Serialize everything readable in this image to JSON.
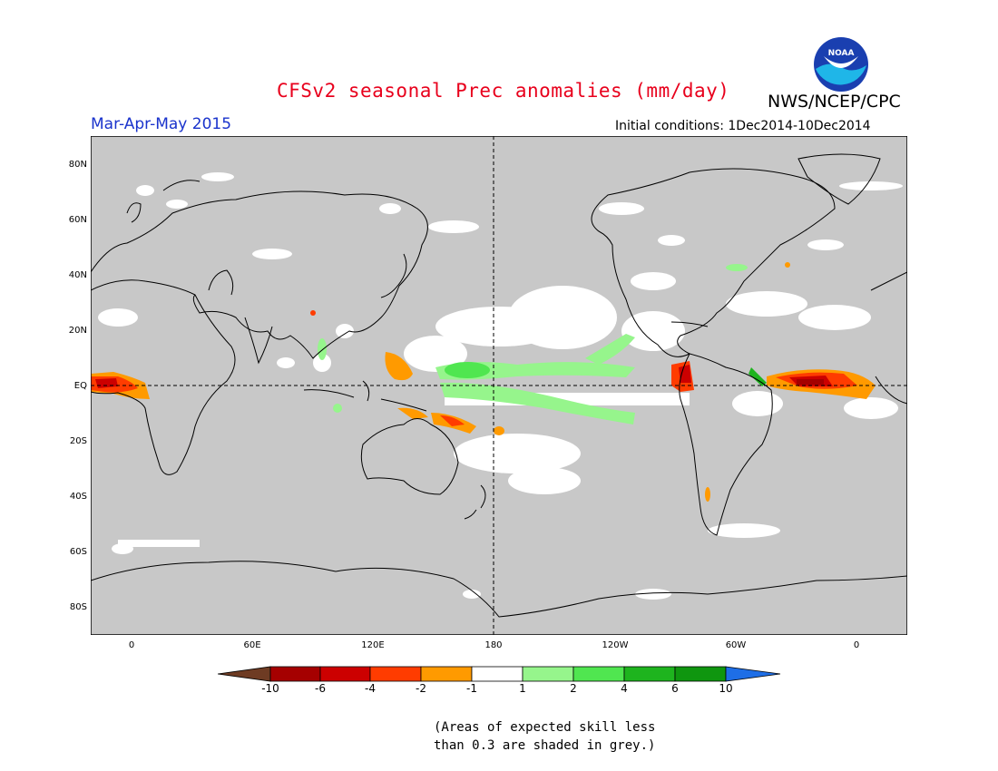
{
  "header": {
    "title": "CFSv2 seasonal Prec anomalies (mm/day)",
    "agency": "NWS/NCEP/CPC",
    "season": "Mar-Apr-May 2015",
    "initial_conditions": "Initial conditions: 1Dec2014-10Dec2014",
    "logo_text": "NOAA"
  },
  "map": {
    "projection": "cylindrical equidistant",
    "center_longitude": "180",
    "lat_ticks": [
      "80N",
      "60N",
      "40N",
      "20N",
      "EQ",
      "20S",
      "40S",
      "60S",
      "80S"
    ],
    "lon_ticks": [
      "0",
      "60E",
      "120E",
      "180",
      "120W",
      "60W",
      "0"
    ],
    "background_color": "#c8c8c8",
    "gridlines": "dashed equator and date line"
  },
  "colorbar": {
    "labels": [
      "-10",
      "-6",
      "-4",
      "-2",
      "-1",
      "1",
      "2",
      "4",
      "6",
      "10"
    ],
    "colors": [
      "#6e3b23",
      "#a50000",
      "#cc0000",
      "#ff3c00",
      "#ff9a00",
      "#ffffff",
      "#96f58c",
      "#50e650",
      "#1eb41e",
      "#0f960f",
      "#1e6ee6"
    ]
  },
  "note": {
    "line1": "(Areas of expected skill less",
    "line2": "than 0.3 are shaded in grey.)"
  }
}
